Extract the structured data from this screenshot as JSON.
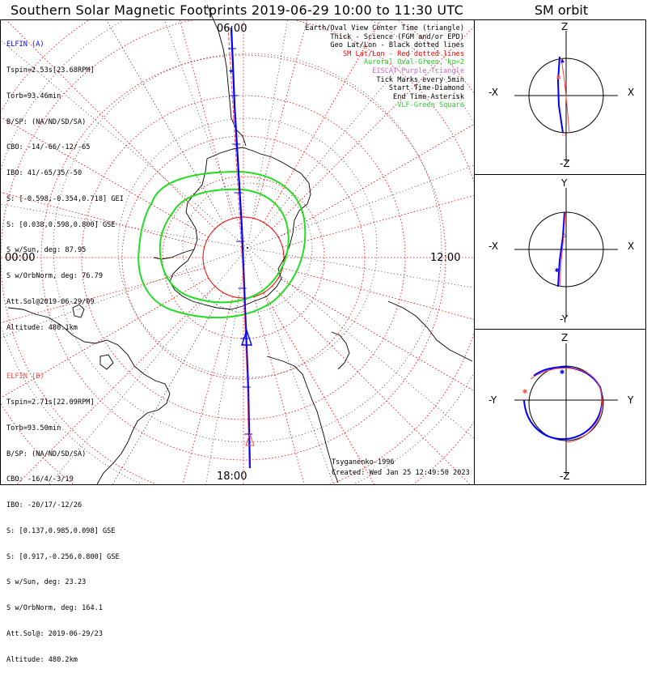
{
  "title": "Southern Solar Magnetic Footprints 2019-06-29 10:00 to 11:30 UTC",
  "orbit_title": "SM orbit",
  "colors": {
    "grid_red": "#ff0000",
    "oval_green": "#22dd22",
    "track_blue": "#0000ff",
    "track_red": "#ff4444",
    "eiscat_purple": "#cc33cc",
    "vlf_green": "#33cc33",
    "elfin_a": "#0000ff",
    "elfin_b": "#ff4444"
  },
  "elfin_a": {
    "name": "ELFIN (A)",
    "lines": [
      "Tspin=2.53s[23.68RPM]",
      "Torb=93.46min",
      "B/SP: (NA/ND/SD/SA)",
      "CBO: -14/-66/-12/-65",
      "IBO: 41/-65/35/-50",
      "S: [-0.598,-0.354,0.718] GEI",
      "S: [0.038,0.598,0.800] GSE",
      "S w/Sun, deg: 87.95",
      "S w/OrbNorm, deg: 76.79",
      "Att.Sol@2019-06-29/09",
      "Altitude: 480.1km"
    ]
  },
  "elfin_b": {
    "name": "ELFIN (B)",
    "lines": [
      "Tspin=2.71s[22.09RPM]",
      "Torb=93.50min",
      "B/SP: (NA/ND/SD/SA)",
      "CBO: -16/4/-3/19",
      "IBO: -20/17/-12/26",
      "S: [0.137,0.985,0.098] GSE",
      "S: [0.917,-0.256,0.800] GSE",
      "S w/Sun, deg: 23.23",
      "S w/OrbNorm, deg: 164.1",
      "Att.Sol@: 2019-06-29/23",
      "Altitude: 480.2km"
    ]
  },
  "legend": [
    {
      "text": "Earth/Oval View Center Time (triangle)",
      "color": "#000000"
    },
    {
      "text": "Thick - Science (FGM and/or EPD)",
      "color": "#000000"
    },
    {
      "text": "Geo Lat/Lon - Black dotted lines",
      "color": "#000000"
    },
    {
      "text": "SM Lat/Lon - Red dotted lines",
      "color": "#ff0000"
    },
    {
      "text": "Auroral Oval-Green, kp=2",
      "color": "#22cc22"
    },
    {
      "text": "EISCAT-Purple Triangle",
      "color": "#cc66cc"
    },
    {
      "text": "Tick Marks every 5min",
      "color": "#000000"
    },
    {
      "text": "Start Time-Diamond",
      "color": "#000000"
    },
    {
      "text": "End Time-Asterisk",
      "color": "#000000"
    },
    {
      "text": "VLF-Green Square",
      "color": "#33cc33"
    }
  ],
  "footer": {
    "credit": "Tsyganenko-1996",
    "created": "Created: Wed Jan 25 12:49:50 2023"
  },
  "chart_data": [
    {
      "type": "polar-map",
      "title": "Southern Solar Magnetic Footprints 2019-06-29 10:00 to 11:30 UTC",
      "mlt_labels": {
        "top": "06:00",
        "left": "00:00",
        "right": "12:00",
        "bottom": "18:00"
      },
      "grid": {
        "sm_lat_step_deg": 10,
        "sm_lon_step_deg": 15,
        "geo_lat_step_deg": 10,
        "geo_lon_step_deg": 30
      },
      "series": [
        {
          "name": "ELFIN (A) footprint",
          "color": "#0000ff"
        },
        {
          "name": "ELFIN (B) footprint",
          "color": "#ff4444"
        }
      ]
    },
    {
      "type": "line",
      "title": "SM orbit X-Z",
      "axes": {
        "up": "Z",
        "down": "-Z",
        "left": "-X",
        "right": "X"
      }
    },
    {
      "type": "line",
      "title": "SM orbit X-Y",
      "axes": {
        "up": "Y",
        "down": "-Y",
        "left": "-X",
        "right": "X"
      }
    },
    {
      "type": "line",
      "title": "SM orbit Y-Z",
      "axes": {
        "up": "Z",
        "down": "-Z",
        "left": "-Y",
        "right": "Y"
      }
    }
  ]
}
